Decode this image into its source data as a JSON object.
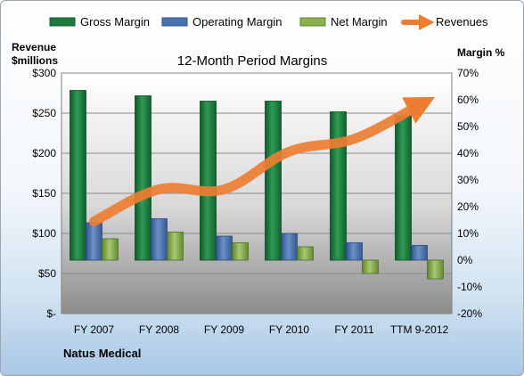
{
  "chart_data": {
    "type": "bar",
    "title": "12-Month Period Margins",
    "categories": [
      "FY 2007",
      "FY 2008",
      "FY 2009",
      "FY 2010",
      "FY 2011",
      "TTM 9-2012"
    ],
    "y_left": {
      "label_lines": [
        "Revenue",
        "$millions"
      ],
      "ticks": [
        "$-",
        "$50",
        "$100",
        "$150",
        "$200",
        "$250",
        "$300"
      ],
      "ylim": [
        0,
        300
      ]
    },
    "y_right": {
      "label": "Margin %",
      "ticks": [
        "-20%",
        "-10%",
        "0%",
        "10%",
        "20%",
        "30%",
        "40%",
        "50%",
        "60%",
        "70%"
      ],
      "ylim": [
        -20,
        70
      ]
    },
    "series": [
      {
        "name": "Gross Margin",
        "type": "bar",
        "axis": "right",
        "values": [
          63.5,
          61.5,
          59.5,
          59.5,
          55.5,
          54
        ],
        "color": "#1e7a3f"
      },
      {
        "name": "Operating Margin",
        "type": "bar",
        "axis": "right",
        "values": [
          14,
          15.5,
          9,
          10,
          6.5,
          5.5
        ],
        "color": "#4a72b0"
      },
      {
        "name": "Net Margin",
        "type": "bar",
        "axis": "right",
        "values": [
          8,
          10.5,
          6.5,
          5,
          -5,
          -7
        ],
        "color": "#8ab04f"
      },
      {
        "name": "Revenues",
        "type": "line",
        "axis": "left",
        "values": [
          115,
          155,
          155,
          202,
          218,
          260
        ],
        "color": "#ed7d31"
      }
    ],
    "grid": true,
    "legend": "top",
    "footer": "Natus Medical"
  }
}
